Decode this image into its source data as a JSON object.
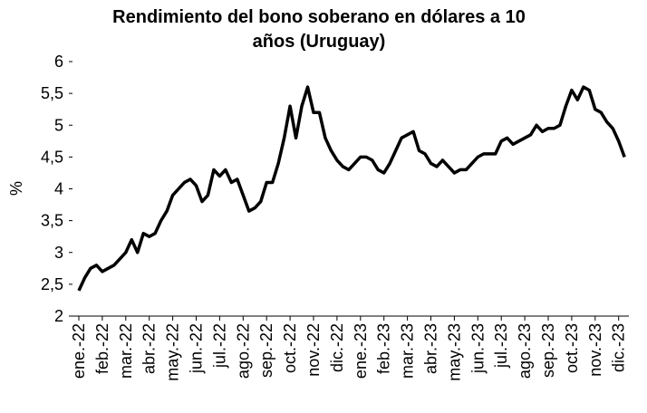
{
  "chart_data": {
    "type": "line",
    "title": "Rendimiento del bono soberano en dólares a 10",
    "subtitle": "años (Uruguay)",
    "y_label": "%",
    "categories": [
      "ene.-22",
      null,
      null,
      null,
      "feb.-22",
      null,
      null,
      null,
      "mar.-22",
      null,
      null,
      null,
      "abr.-22",
      null,
      null,
      null,
      "may.-22",
      null,
      null,
      null,
      "jun.-22",
      null,
      null,
      null,
      "jul.-22",
      null,
      null,
      null,
      "ago.-22",
      null,
      null,
      null,
      "sep.-22",
      null,
      null,
      null,
      "oct.-22",
      null,
      null,
      null,
      "nov.-22",
      null,
      null,
      null,
      "dic.-22",
      null,
      null,
      null,
      "ene.-23",
      null,
      null,
      null,
      "feb.-23",
      null,
      null,
      null,
      "mar.-23",
      null,
      null,
      null,
      "abr.-23",
      null,
      null,
      null,
      "may.-23",
      null,
      null,
      null,
      "jun.-23",
      null,
      null,
      null,
      "jul.-23",
      null,
      null,
      null,
      "ago.-23",
      null,
      null,
      null,
      "sep.-23",
      null,
      null,
      null,
      "oct.-23",
      null,
      null,
      null,
      "nov.-23",
      null,
      null,
      null,
      "dic.-23",
      null
    ],
    "series": [
      {
        "name": "Rendimiento",
        "color": "#000000",
        "values": [
          2.4,
          2.6,
          2.75,
          2.8,
          2.7,
          2.75,
          2.8,
          2.9,
          3.0,
          3.2,
          3.0,
          3.3,
          3.25,
          3.3,
          3.5,
          3.65,
          3.9,
          4.0,
          4.1,
          4.15,
          4.05,
          3.8,
          3.9,
          4.3,
          4.2,
          4.3,
          4.1,
          4.15,
          3.9,
          3.65,
          3.7,
          3.8,
          4.1,
          4.1,
          4.4,
          4.8,
          5.3,
          4.8,
          5.3,
          5.6,
          5.2,
          5.2,
          4.8,
          4.6,
          4.45,
          4.35,
          4.3,
          4.4,
          4.5,
          4.5,
          4.45,
          4.3,
          4.25,
          4.4,
          4.6,
          4.8,
          4.85,
          4.9,
          4.6,
          4.55,
          4.4,
          4.35,
          4.45,
          4.35,
          4.25,
          4.3,
          4.3,
          4.4,
          4.5,
          4.55,
          4.55,
          4.55,
          4.75,
          4.8,
          4.7,
          4.75,
          4.8,
          4.85,
          5.0,
          4.9,
          4.95,
          4.95,
          5.0,
          5.3,
          5.55,
          5.4,
          5.6,
          5.55,
          5.25,
          5.2,
          5.05,
          4.95,
          4.75,
          4.5
        ]
      }
    ],
    "ylim": [
      2,
      6
    ],
    "yticks": [
      2,
      {
        "value": 2.5,
        "label": "2,5"
      },
      3,
      {
        "value": 3.5,
        "label": "3,5"
      },
      4,
      {
        "value": 4.5,
        "label": "4,5"
      },
      5,
      {
        "value": 5.5,
        "label": "5,5"
      },
      6
    ]
  }
}
